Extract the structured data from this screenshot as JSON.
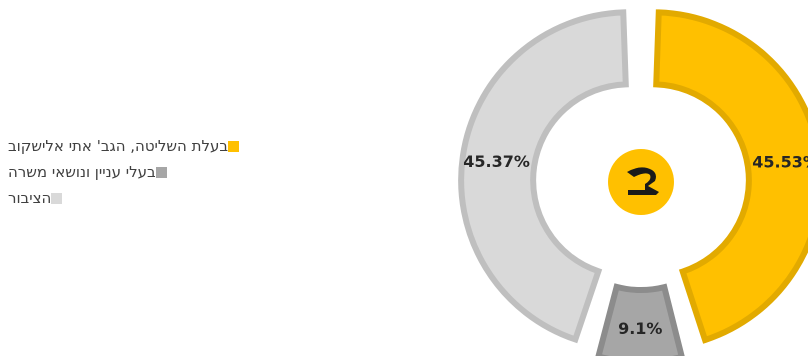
{
  "chart_data": {
    "type": "pie",
    "style": "donut",
    "title": "",
    "slices": [
      {
        "label": "בעלת השליטה, הגב' אתי אלישקוב",
        "value": 45.53,
        "display": "45.53%",
        "color": "#FFC000",
        "border": "#E2AA00"
      },
      {
        "label": "בעלי עניין ונושאי משרה",
        "value": 9.1,
        "display": "9.1%",
        "color": "#A6A6A6",
        "border": "#8C8C8C"
      },
      {
        "label": "הציבור",
        "value": 45.37,
        "display": "45.37%",
        "color": "#D9D9D9",
        "border": "#BFBFBF"
      }
    ],
    "legend_position": "left",
    "center_logo": {
      "icon": "company-logo-icon",
      "color": "#FFC000",
      "glyph_color": "#1a1a1a"
    }
  }
}
